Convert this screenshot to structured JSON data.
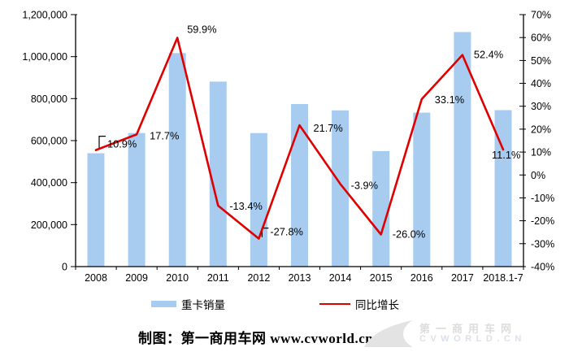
{
  "chart_data": {
    "type": "combo",
    "categories": [
      "2008",
      "2009",
      "2010",
      "2011",
      "2012",
      "2013",
      "2014",
      "2015",
      "2016",
      "2017",
      "2018.1-7"
    ],
    "series": [
      {
        "name": "重卡销量",
        "type": "bar",
        "axis": "left",
        "color": "#A8CCF0",
        "values": [
          540000,
          636000,
          1017000,
          881000,
          636000,
          774000,
          744000,
          550000,
          733000,
          1117000,
          745000
        ]
      },
      {
        "name": "同比增长",
        "type": "line",
        "axis": "right",
        "color": "#E00000",
        "values": [
          10.9,
          17.7,
          59.9,
          -13.4,
          -27.8,
          21.7,
          -3.9,
          -26.0,
          33.1,
          52.4,
          11.1
        ],
        "labels": [
          "10.9%",
          "17.7%",
          "59.9%",
          "-13.4%",
          "-27.8%",
          "21.7%",
          "-3.9%",
          "-26.0%",
          "33.1%",
          "52.4%",
          "11.1%"
        ],
        "label_offsets": [
          [
            14,
            -3
          ],
          [
            16,
            6
          ],
          [
            12,
            -6
          ],
          [
            14,
            5
          ],
          [
            14,
            -4
          ],
          [
            17,
            8
          ],
          [
            13,
            6
          ],
          [
            14,
            4
          ],
          [
            16,
            5
          ],
          [
            14,
            4
          ],
          [
            -14,
            11
          ]
        ],
        "leaders": [
          {
            "i": 0,
            "h": 17
          },
          {
            "i": 4,
            "h": 13
          }
        ]
      }
    ],
    "axes": {
      "left": {
        "min": 0,
        "max": 1200000,
        "step": 200000,
        "tick_labels": [
          "0",
          "200,000",
          "400,000",
          "600,000",
          "800,000",
          "1,000,000",
          "1,200,000"
        ]
      },
      "right": {
        "min": -40,
        "max": 70,
        "step": 10,
        "tick_labels": [
          "-40%",
          "-30%",
          "-20%",
          "-10%",
          "0%",
          "10%",
          "20%",
          "30%",
          "40%",
          "50%",
          "60%",
          "70%"
        ]
      }
    },
    "grid": false,
    "legend_position": "bottom",
    "title": ""
  },
  "footer": {
    "credit": "制图：第一商用车网 www.cvworld.cn"
  },
  "watermark": {
    "line1": "第一商用车网",
    "line2": "CVWORLD.CN"
  },
  "colors": {
    "bar": "#A8CCF0",
    "line": "#E00000",
    "axis": "#000000",
    "watermark": "#DDDDDD"
  }
}
